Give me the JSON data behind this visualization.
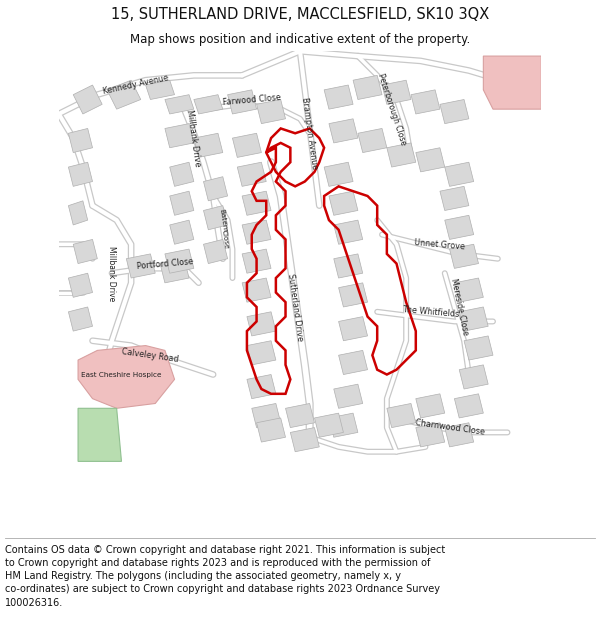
{
  "title": "15, SUTHERLAND DRIVE, MACCLESFIELD, SK10 3QX",
  "subtitle": "Map shows position and indicative extent of the property.",
  "footer": "Contains OS data © Crown copyright and database right 2021. This information is subject\nto Crown copyright and database rights 2023 and is reproduced with the permission of\nHM Land Registry. The polygons (including the associated geometry, namely x, y\nco-ordinates) are subject to Crown copyright and database rights 2023 Ordnance Survey\n100026316.",
  "bg_color": "#f0eeea",
  "road_color": "#ffffff",
  "road_edge_color": "#c8c8c8",
  "building_color": "#d8d8d8",
  "building_edge_color": "#b0b0b0",
  "green_color": "#b8ddb0",
  "pink_color": "#f0c0c0",
  "red_color": "#cc0000",
  "title_fontsize": 10.5,
  "subtitle_fontsize": 8.5,
  "footer_fontsize": 7.0,
  "label_fontsize": 5.8,
  "label_color": "#222222"
}
